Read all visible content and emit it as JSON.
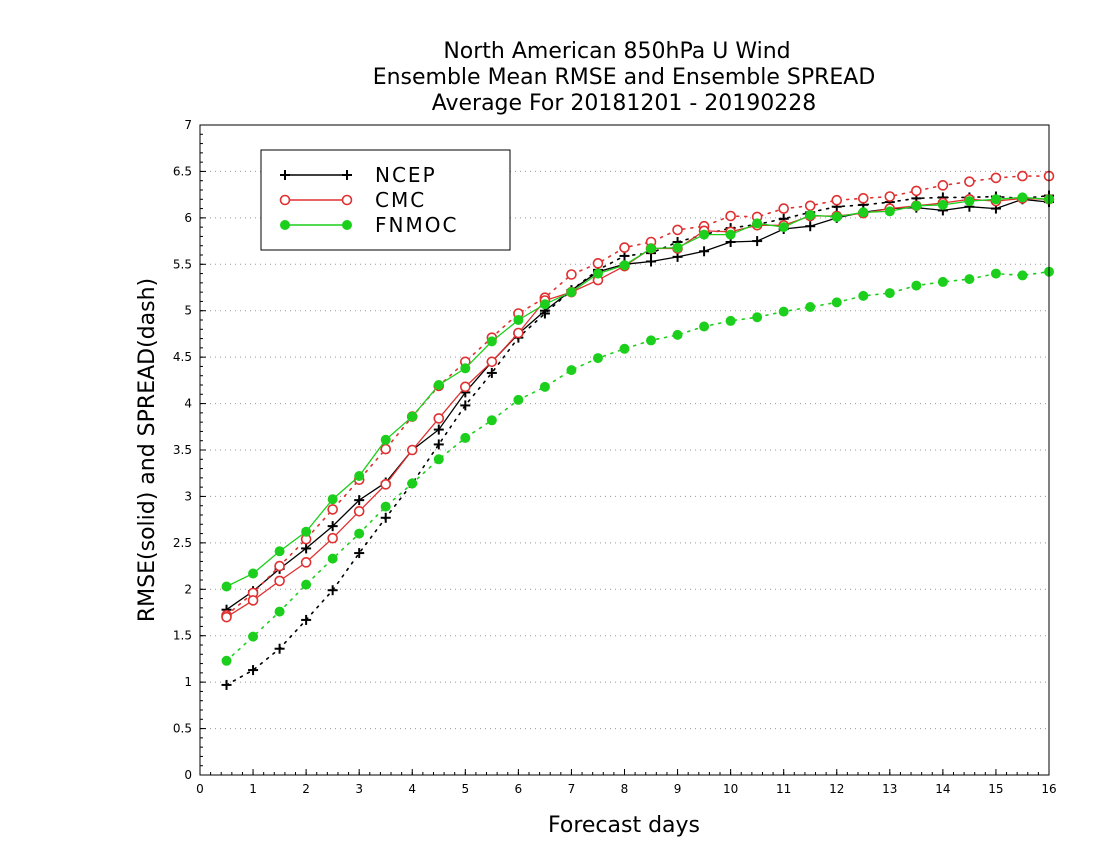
{
  "chart_data": {
    "type": "line",
    "title": [
      "North American 850hPa U Wind",
      "Ensemble Mean RMSE and Ensemble SPREAD",
      "Average For 20181201 - 20190228"
    ],
    "xlabel": "Forecast days",
    "ylabel": "RMSE(solid) and SPREAD(dash)",
    "xlim": [
      0,
      16
    ],
    "ylim": [
      0,
      7
    ],
    "xticks": [
      "0",
      "1",
      "2",
      "3",
      "4",
      "5",
      "6",
      "7",
      "8",
      "9",
      "10",
      "11",
      "12",
      "13",
      "14",
      "15",
      "16"
    ],
    "yticks": [
      "0",
      "0.5",
      "1",
      "1.5",
      "2",
      "2.5",
      "3",
      "3.5",
      "4",
      "4.5",
      "5",
      "5.5",
      "6",
      "6.5",
      "7"
    ],
    "grid": "horizontal dotted",
    "legend_position": "top-left",
    "x": [
      0.5,
      1,
      1.5,
      2,
      2.5,
      3,
      3.5,
      4,
      4.5,
      5,
      5.5,
      6,
      6.5,
      7,
      7.5,
      8,
      8.5,
      9,
      9.5,
      10,
      10.5,
      11,
      11.5,
      12,
      12.5,
      13,
      13.5,
      14,
      14.5,
      15,
      15.5,
      16
    ],
    "series": [
      {
        "name": "NCEP",
        "color": "#000000",
        "marker": "plus",
        "rmse": [
          1.78,
          1.98,
          2.22,
          2.44,
          2.68,
          2.96,
          3.15,
          3.5,
          3.72,
          4.12,
          4.45,
          4.75,
          5.0,
          5.22,
          5.42,
          5.5,
          5.53,
          5.58,
          5.64,
          5.74,
          5.75,
          5.88,
          5.91,
          6.0,
          6.06,
          6.1,
          6.11,
          6.08,
          6.12,
          6.1,
          6.2,
          6.17
        ],
        "spread": [
          0.97,
          1.13,
          1.36,
          1.67,
          1.99,
          2.39,
          2.77,
          3.14,
          3.56,
          3.98,
          4.33,
          4.71,
          4.97,
          5.22,
          5.44,
          5.59,
          5.62,
          5.74,
          5.82,
          5.89,
          5.93,
          5.99,
          6.06,
          6.12,
          6.14,
          6.17,
          6.21,
          6.22,
          6.22,
          6.23,
          6.21,
          6.24
        ]
      },
      {
        "name": "CMC",
        "color": "#e03030",
        "marker": "circle-open",
        "rmse": [
          1.7,
          1.88,
          2.09,
          2.29,
          2.55,
          2.84,
          3.13,
          3.5,
          3.84,
          4.18,
          4.45,
          4.76,
          5.11,
          5.2,
          5.33,
          5.48,
          5.67,
          5.67,
          5.86,
          5.85,
          5.92,
          5.92,
          6.02,
          6.02,
          6.05,
          6.1,
          6.13,
          6.16,
          6.2,
          6.18,
          6.21,
          6.2
        ],
        "spread": [
          1.72,
          1.96,
          2.25,
          2.54,
          2.86,
          3.18,
          3.51,
          3.86,
          4.19,
          4.45,
          4.71,
          4.97,
          5.14,
          5.39,
          5.51,
          5.68,
          5.74,
          5.87,
          5.91,
          6.02,
          6.01,
          6.1,
          6.13,
          6.19,
          6.21,
          6.23,
          6.29,
          6.35,
          6.39,
          6.43,
          6.45,
          6.45
        ]
      },
      {
        "name": "FNMOC",
        "color": "#1ccf1c",
        "marker": "circle-filled",
        "rmse": [
          2.03,
          2.17,
          2.41,
          2.62,
          2.97,
          3.22,
          3.61,
          3.86,
          4.2,
          4.38,
          4.67,
          4.9,
          5.07,
          5.2,
          5.4,
          5.49,
          5.67,
          5.68,
          5.82,
          5.82,
          5.94,
          5.9,
          6.03,
          6.01,
          6.06,
          6.07,
          6.13,
          6.14,
          6.18,
          6.2,
          6.22,
          6.2
        ],
        "spread": [
          1.23,
          1.49,
          1.76,
          2.05,
          2.33,
          2.6,
          2.89,
          3.14,
          3.4,
          3.63,
          3.82,
          4.04,
          4.18,
          4.36,
          4.49,
          4.59,
          4.68,
          4.74,
          4.83,
          4.89,
          4.93,
          4.99,
          5.04,
          5.09,
          5.16,
          5.19,
          5.27,
          5.31,
          5.34,
          5.4,
          5.38,
          5.42
        ]
      }
    ]
  }
}
